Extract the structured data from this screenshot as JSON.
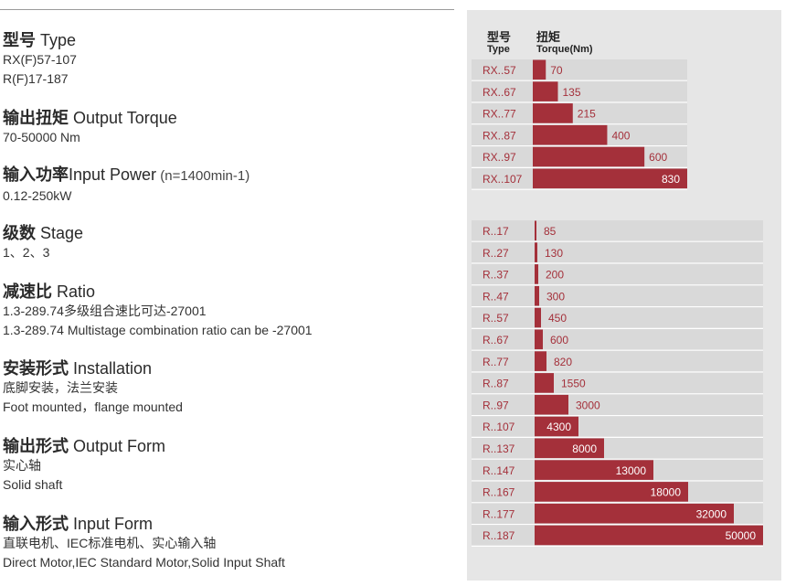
{
  "specs": [
    {
      "title_cn": "型号",
      "title_en": "Type",
      "note": "",
      "lines": [
        "RX(F)57-107",
        "R(F)17-187"
      ]
    },
    {
      "title_cn": "输出扭矩",
      "title_en": "Output Torque",
      "note": "",
      "lines": [
        "70-50000 Nm"
      ]
    },
    {
      "title_cn": "输入功率",
      "title_en": "Input Power",
      "note": "(n=1400min-1)",
      "lines": [
        "0.12-250kW"
      ]
    },
    {
      "title_cn": "级数",
      "title_en": "Stage",
      "note": "",
      "lines": [
        "1、2、3"
      ]
    },
    {
      "title_cn": "减速比",
      "title_en": "Ratio",
      "note": "",
      "lines": [
        "1.3-289.74多级组合速比可达-27001",
        "1.3-289.74 Multistage combination ratio can be -27001"
      ]
    },
    {
      "title_cn": "安装形式",
      "title_en": "Installation",
      "note": "",
      "lines": [
        "底脚安装，法兰安装",
        "Foot mounted，flange mounted"
      ]
    },
    {
      "title_cn": "输出形式",
      "title_en": "Output Form",
      "note": "",
      "lines": [
        "实心轴",
        "Solid shaft"
      ]
    },
    {
      "title_cn": "输入形式",
      "title_en": "Input Form",
      "note": "",
      "lines": [
        "直联电机、IEC标准电机、实心输入轴",
        "Direct Motor,IEC Standard Motor,Solid Input Shaft"
      ]
    }
  ],
  "chart_data": [
    {
      "type": "bar",
      "orientation": "horizontal",
      "header_type_cn": "型号",
      "header_type_en": "Type",
      "header_torque_cn": "扭矩",
      "header_torque_en": "Torque(Nm)",
      "categories": [
        "RX..57",
        "RX..67",
        "RX..77",
        "RX..87",
        "RX..97",
        "RX..107"
      ],
      "values": [
        70,
        135,
        215,
        400,
        600,
        830
      ],
      "value_labels": [
        "70",
        "135",
        "215",
        "400",
        "600",
        "830"
      ],
      "xlim": [
        0,
        830
      ]
    },
    {
      "type": "bar",
      "orientation": "horizontal",
      "categories": [
        "R..17",
        "R..27",
        "R..37",
        "R..47",
        "R..57",
        "R..67",
        "R..77",
        "R..87",
        "R..97",
        "R..107",
        "R..137",
        "R..147",
        "R..167",
        "R..177",
        "R..187"
      ],
      "values": [
        85,
        130,
        200,
        300,
        450,
        600,
        820,
        1550,
        3000,
        4300,
        8000,
        13000,
        18000,
        32000,
        50000
      ],
      "value_labels": [
        "85",
        "130",
        "200",
        "300",
        "450",
        "600",
        "820",
        "1550",
        "3000",
        "4300",
        "8000",
        "13000",
        "18000",
        "32000",
        "50000"
      ],
      "scale": "nonlinear (bar lengths not proportional)"
    }
  ],
  "colors": {
    "bar": "#a4303a",
    "row_bg": "#d9d9d9",
    "panel_bg": "#e6e6e6",
    "label": "#a4303a"
  }
}
